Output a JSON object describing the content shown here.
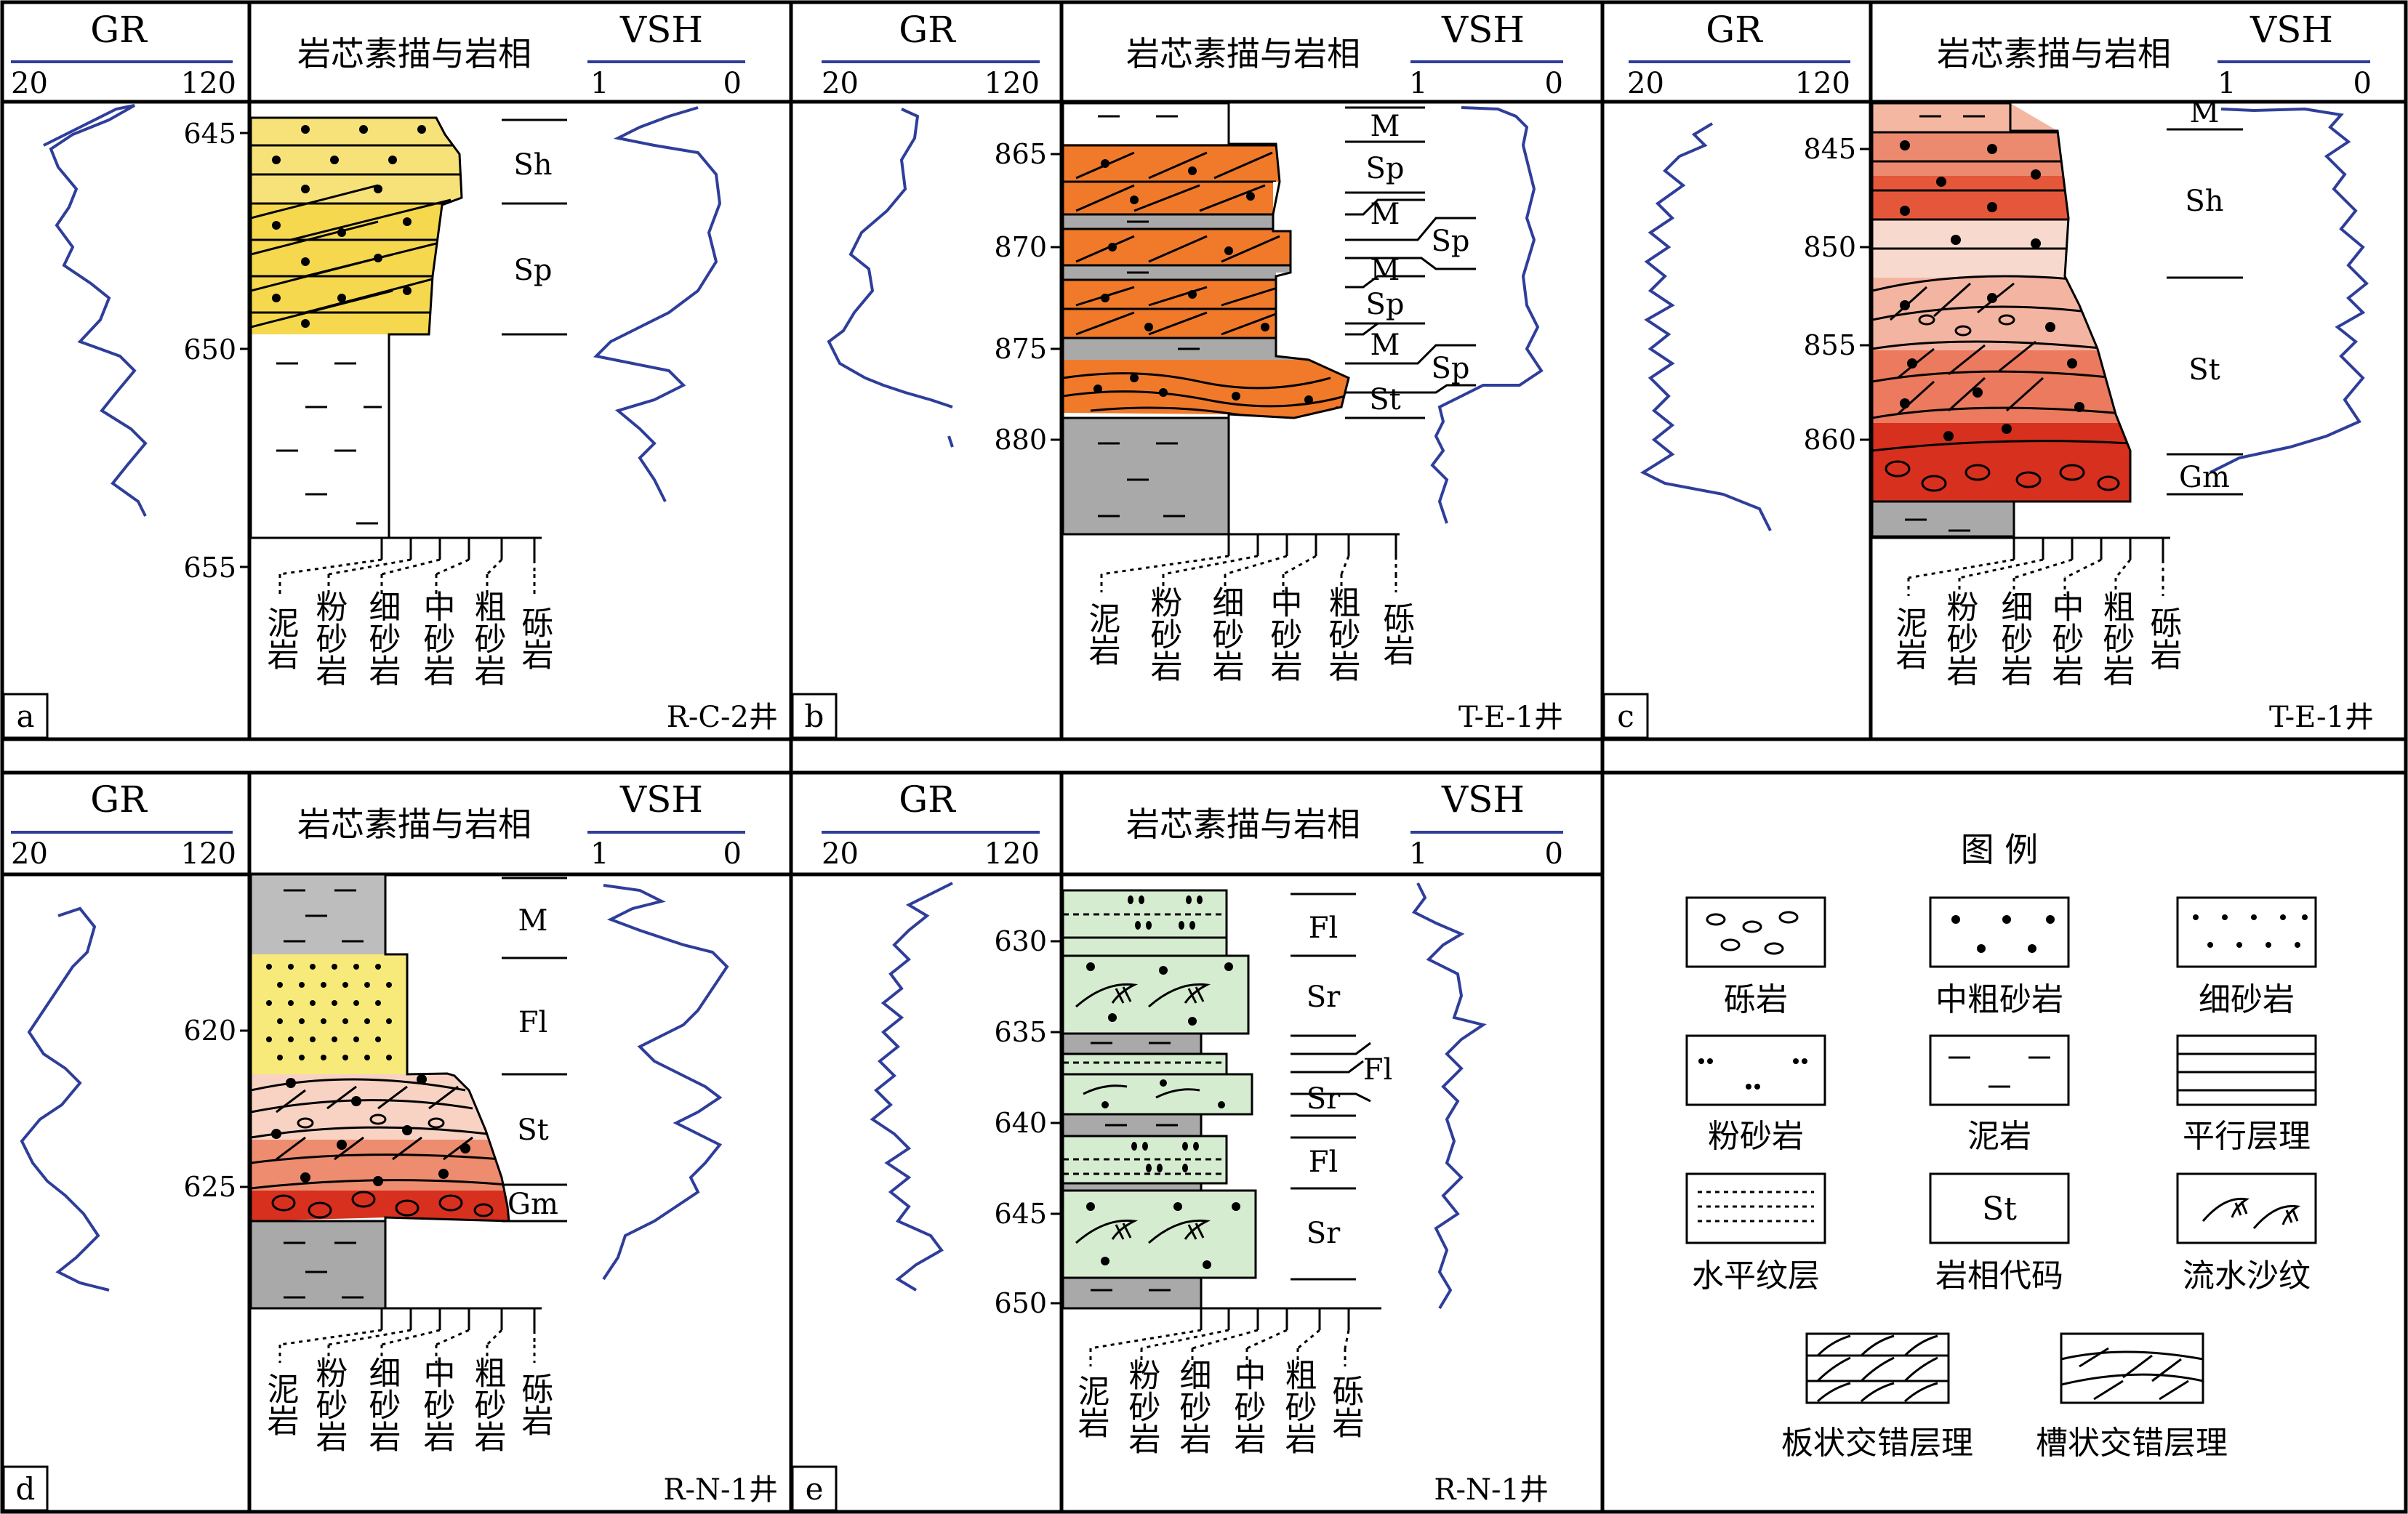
{
  "headers": {
    "gr": "GR",
    "gr_min": "20",
    "gr_max": "120",
    "core": "岩芯素描与岩相",
    "vsh": "VSH",
    "vsh_min": "1",
    "vsh_max": "0"
  },
  "lithology_scale": [
    "泥岩",
    "粉砂岩",
    "细砂岩",
    "中砂岩",
    "粗砂岩",
    "砾岩"
  ],
  "panels": [
    {
      "label": "a",
      "well": "R-C-2井",
      "depth_ticks": [
        "645",
        "650",
        "655"
      ],
      "facies": [
        {
          "code": "Sh"
        },
        {
          "code": "Sp"
        }
      ],
      "layers": [
        {
          "lithology": "细砂岩",
          "structure": "平行层理",
          "color": "#f7e27a"
        },
        {
          "lithology": "细砂岩",
          "structure": "板状交错层理",
          "color": "#f5d84e"
        },
        {
          "lithology": "泥岩",
          "color": "#a9a9a9"
        }
      ]
    },
    {
      "label": "b",
      "well": "T-E-1井",
      "depth_ticks": [
        "865",
        "870",
        "875",
        "880"
      ],
      "facies": [
        {
          "code": "M"
        },
        {
          "code": "Sp"
        },
        {
          "code": "M"
        },
        {
          "code": "Sp"
        },
        {
          "code": "M"
        },
        {
          "code": "Sp"
        },
        {
          "code": "M"
        },
        {
          "code": "Sp"
        },
        {
          "code": "St"
        }
      ],
      "layers": [
        {
          "lithology": "泥岩",
          "color": "#f2a37a"
        },
        {
          "lithology": "中粗砂岩",
          "structure": "板状交错层理",
          "color": "#f07a2a"
        },
        {
          "lithology": "中粗砂岩",
          "structure": "槽状交错层理",
          "color": "#f07a2a"
        },
        {
          "lithology": "泥岩",
          "color": "#a9a9a9"
        }
      ]
    },
    {
      "label": "c",
      "well": "T-E-1井",
      "depth_ticks": [
        "845",
        "850",
        "855",
        "860"
      ],
      "facies": [
        {
          "code": "M"
        },
        {
          "code": "Sh"
        },
        {
          "code": "St"
        },
        {
          "code": "Gm"
        }
      ],
      "layers": [
        {
          "lithology": "中粗砂岩",
          "structure": "平行层理",
          "color": "#e8603c"
        },
        {
          "lithology": "中粗砂岩",
          "structure": "槽状交错层理",
          "color": "#f3b5a2"
        },
        {
          "lithology": "砾岩",
          "color": "#d7301e"
        },
        {
          "lithology": "泥岩",
          "color": "#a9a9a9"
        }
      ]
    },
    {
      "label": "d",
      "well": "R-N-1井",
      "depth_ticks": [
        "620",
        "625"
      ],
      "facies": [
        {
          "code": "M"
        },
        {
          "code": "Fl"
        },
        {
          "code": "St"
        },
        {
          "code": "Gm"
        }
      ],
      "layers": [
        {
          "lithology": "泥岩",
          "color": "#bdbdbd"
        },
        {
          "lithology": "粉砂岩",
          "structure": "水平纹层",
          "color": "#f7ea7a"
        },
        {
          "lithology": "中粗砂岩",
          "structure": "槽状交错层理",
          "color": "#f3b5a2"
        },
        {
          "lithology": "砾岩",
          "color": "#d7301e"
        },
        {
          "lithology": "泥岩",
          "color": "#a9a9a9"
        }
      ]
    },
    {
      "label": "e",
      "well": "R-N-1井",
      "depth_ticks": [
        "630",
        "635",
        "640",
        "645",
        "650"
      ],
      "facies": [
        {
          "code": "Fl"
        },
        {
          "code": "Sr"
        },
        {
          "code": "Fl"
        },
        {
          "code": "Sr"
        },
        {
          "code": "Fl"
        },
        {
          "code": "Sr"
        }
      ],
      "layers": [
        {
          "lithology": "粉砂岩",
          "structure": "水平纹层",
          "color": "#d6ecd0"
        },
        {
          "lithology": "细砂岩",
          "structure": "流水沙纹",
          "color": "#d6ecd0"
        },
        {
          "lithology": "泥岩",
          "color": "#a9a9a9"
        }
      ]
    }
  ],
  "legend": {
    "title": "图 例",
    "items": [
      "砾岩",
      "中粗砂岩",
      "细砂岩",
      "粉砂岩",
      "泥岩",
      "平行层理",
      "水平纹层",
      "岩相代码",
      "流水沙纹",
      "板状交错层理",
      "槽状交错层理"
    ],
    "facies_example": "St"
  },
  "colors": {
    "gr_curve": "#2e3e9a",
    "mudstone": "#a9a9a9"
  }
}
